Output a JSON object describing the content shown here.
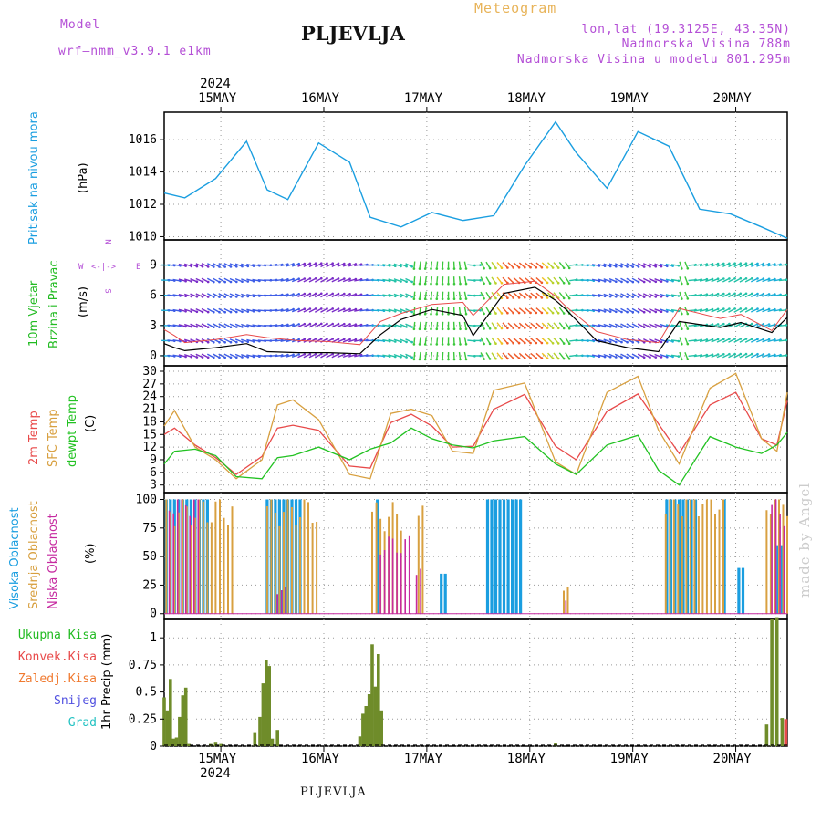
{
  "header": {
    "model_label": "Model",
    "model_name": "wrf—nmm_v3.9.1  e1km",
    "station": "PLJEVLJA",
    "product": "Meteogram",
    "coords": "lon,lat (19.3125E, 43.35N)",
    "elevation": "Nadmorska Visina 788m",
    "model_elevation": "Nadmorska Visina u modelu 801.295m"
  },
  "footer": {
    "station": "PLJEVLJA"
  },
  "watermark": "made by Angel",
  "colors": {
    "model": "#b44fd6",
    "product": "#e8b45a",
    "coords": "#b44fd6",
    "pressure": "#1a9ee0",
    "wind_green": "#22bb22",
    "t2m": "#e84a4a",
    "sfc": "#d8a040",
    "dew": "#22c222",
    "high_cloud": "#1a9ee0",
    "mid_cloud": "#d8a040",
    "low_cloud": "#c62aa0",
    "total_precip": "#3bb53b",
    "conv_precip": "#e84a4a",
    "frz_precip": "#f07a30",
    "snow": "#5050e0",
    "grad": "#22c2c2"
  },
  "top_dates": {
    "year": "2024",
    "days": [
      "15MAY",
      "16MAY",
      "17MAY",
      "18MAY",
      "19MAY",
      "20MAY"
    ]
  },
  "bottom_dates": {
    "year": "2024",
    "days": [
      "15MAY",
      "16MAY",
      "17MAY",
      "18MAY",
      "19MAY",
      "20MAY"
    ]
  },
  "labels": {
    "pressure": "Pritisak na nivou mora",
    "pressure_unit": "(hPa)",
    "wind1": "10m Vjetar",
    "wind2": "Brzina i Pravac",
    "wind_unit": "(m/s)",
    "compass_n": "N",
    "compass_e": "E",
    "compass_w": "W",
    "compass_s": "S",
    "t2m": "2m Temp",
    "sfc": "SFC Temp",
    "dew": "dewpt Temp",
    "temp_unit": "(C)",
    "cl_high": "Visoka Oblacnost",
    "cl_mid": "Srednja Oblacnost",
    "cl_low": "Niska Oblacnost",
    "cl_unit": "(%)",
    "pr_total": "Ukupna Kisa",
    "pr_conv": "Konvek.Kisa",
    "pr_frz": "Zaledj.Kisa",
    "pr_snow": "Snijeg",
    "pr_grad": "Grad",
    "pr_unit": "1hr Precip (mm)"
  },
  "chart_data": [
    {
      "type": "line",
      "name": "pressure",
      "ylabel": "Pritisak na nivou mora (hPa)",
      "yticks": [
        1010,
        1012,
        1014,
        1016
      ],
      "ylim": [
        1009.8,
        1017.7
      ],
      "grid": true,
      "x_days": [
        0,
        0.2,
        0.5,
        0.8,
        1.0,
        1.2,
        1.5,
        1.8,
        2.0,
        2.3,
        2.6,
        2.9,
        3.2,
        3.5,
        3.8,
        4.0,
        4.3,
        4.6,
        4.9,
        5.2,
        5.5,
        5.8,
        6.05
      ],
      "series": [
        {
          "values": [
            1012.7,
            1012.4,
            1013.6,
            1015.9,
            1012.9,
            1012.3,
            1015.8,
            1014.6,
            1011.2,
            1010.6,
            1011.5,
            1011.0,
            1011.3,
            1014.4,
            1017.1,
            1015.2,
            1013.0,
            1016.5,
            1015.6,
            1011.7,
            1011.4,
            1010.6,
            1009.9
          ]
        }
      ]
    },
    {
      "type": "line",
      "name": "wind",
      "ylabel": "10m Vjetar Brzina i Pravac (m/s)",
      "yticks": [
        0,
        3,
        6,
        9
      ],
      "ylim": [
        -1,
        11.5
      ],
      "grid": true,
      "x_days": [
        0,
        0.1,
        0.2,
        0.5,
        0.8,
        1.0,
        1.3,
        1.6,
        1.9,
        2.1,
        2.3,
        2.6,
        2.9,
        3.0,
        3.3,
        3.6,
        3.8,
        3.9,
        4.2,
        4.5,
        4.8,
        5.0,
        5.4,
        5.6,
        5.9,
        6.05
      ],
      "series": [
        {
          "values": [
            1.2,
            0.8,
            0.5,
            0.8,
            1.2,
            0.4,
            0.3,
            0.3,
            0.2,
            2.1,
            3.6,
            4.6,
            4.0,
            2.0,
            6.2,
            6.8,
            5.5,
            4.6,
            1.5,
            0.8,
            0.4,
            3.4,
            2.8,
            3.3,
            2.3,
            3.8
          ]
        },
        {
          "values": [
            2.6,
            2.0,
            1.3,
            1.6,
            2.1,
            1.8,
            1.5,
            1.4,
            1.1,
            3.4,
            4.2,
            5.1,
            5.3,
            4.0,
            7.1,
            7.4,
            5.9,
            4.9,
            2.4,
            1.6,
            1.3,
            4.7,
            3.7,
            4.1,
            2.5,
            4.6
          ]
        }
      ]
    },
    {
      "type": "line",
      "name": "temperature",
      "ylabel": "2m Temp / SFC Temp / dewpt Temp (C)",
      "yticks": [
        3,
        6,
        9,
        12,
        15,
        18,
        21,
        24,
        27,
        30
      ],
      "ylim": [
        1.2,
        31.3
      ],
      "grid": true,
      "x_days": [
        0,
        0.1,
        0.3,
        0.5,
        0.7,
        0.95,
        1.1,
        1.25,
        1.5,
        1.8,
        2.0,
        2.2,
        2.4,
        2.6,
        2.8,
        3.0,
        3.2,
        3.5,
        3.8,
        4.0,
        4.3,
        4.6,
        4.8,
        5.0,
        5.3,
        5.55,
        5.8,
        5.95,
        6.05
      ],
      "series": [
        {
          "name": "2m Temp",
          "values": [
            15.0,
            16.5,
            12.5,
            9.5,
            5.5,
            9.8,
            16.5,
            17.2,
            16.0,
            7.5,
            7.0,
            17.8,
            19.8,
            17.0,
            12.0,
            12.2,
            21.0,
            24.5,
            12.2,
            9.0,
            20.5,
            24.6,
            17.5,
            10.5,
            22.0,
            25.0,
            14.0,
            12.5,
            23.0
          ]
        },
        {
          "name": "SFC Temp",
          "values": [
            17.0,
            20.7,
            12.0,
            9.0,
            4.5,
            9.0,
            22.0,
            23.2,
            18.5,
            5.5,
            4.5,
            20.0,
            21.0,
            19.5,
            11.0,
            10.5,
            25.5,
            27.2,
            8.5,
            5.5,
            25.0,
            28.8,
            16.0,
            8.0,
            26.0,
            29.5,
            14.0,
            11.0,
            25.0
          ]
        },
        {
          "name": "dewpt Temp",
          "values": [
            8.0,
            11.0,
            11.5,
            10.0,
            5.0,
            4.5,
            9.5,
            10.0,
            12.0,
            9.0,
            11.5,
            13.0,
            16.5,
            14.0,
            12.5,
            11.8,
            13.5,
            14.5,
            8.0,
            5.5,
            12.5,
            14.8,
            6.5,
            3.0,
            14.5,
            12.0,
            10.5,
            12.5,
            15.5
          ]
        }
      ]
    },
    {
      "type": "bar",
      "name": "cloud_cover",
      "ylabel": "Visoka / Srednja / Niska Oblacnost (%)",
      "yticks": [
        0,
        25,
        50,
        75,
        100
      ],
      "ylim": [
        -5,
        106
      ],
      "grid": true,
      "series": [
        {
          "name": "Visoka Oblacnost",
          "segments": [
            [
              0.02,
              0.45,
              100
            ],
            [
              1.0,
              1.35,
              100
            ],
            [
              2.07,
              2.1,
              100
            ],
            [
              2.69,
              2.74,
              35
            ],
            [
              3.14,
              3.5,
              100
            ],
            [
              4.88,
              5.18,
              100
            ],
            [
              5.44,
              5.47,
              100
            ],
            [
              5.58,
              5.62,
              40
            ],
            [
              5.96,
              6.0,
              60
            ]
          ]
        },
        {
          "name": "Srednja Oblacnost",
          "segments": [
            [
              0.02,
              0.7,
              90
            ],
            [
              1.0,
              1.52,
              90
            ],
            [
              2.02,
              2.33,
              85
            ],
            [
              2.47,
              2.52,
              100
            ],
            [
              3.88,
              3.92,
              20
            ],
            [
              4.87,
              5.45,
              100
            ],
            [
              5.85,
              6.05,
              100
            ]
          ]
        },
        {
          "name": "Niska Oblacnost",
          "segments": [
            [
              0.05,
              0.35,
              100
            ],
            [
              1.1,
              1.2,
              20
            ],
            [
              2.1,
              2.4,
              60
            ],
            [
              2.45,
              2.5,
              40
            ],
            [
              3.9,
              3.92,
              10
            ],
            [
              5.9,
              6.05,
              90
            ]
          ]
        }
      ]
    },
    {
      "type": "bar",
      "name": "precipitation",
      "ylabel": "1hr Precip (mm)",
      "yticks": [
        0,
        0.25,
        0.5,
        0.75,
        1
      ],
      "ylim": [
        0,
        1.17
      ],
      "grid": true,
      "x_days": [
        0.0,
        0.03,
        0.06,
        0.09,
        0.12,
        0.15,
        0.18,
        0.21,
        0.24,
        0.27,
        0.3,
        0.45,
        0.5,
        0.55,
        0.88,
        0.93,
        0.96,
        0.99,
        1.02,
        1.05,
        1.1,
        1.15,
        1.9,
        1.93,
        1.96,
        1.99,
        2.02,
        2.05,
        2.08,
        2.11,
        2.15,
        3.8,
        5.85,
        5.9,
        5.95,
        6.0
      ],
      "series": [
        {
          "name": "Ukupna Kisa",
          "values": [
            0.45,
            0.33,
            0.62,
            0.07,
            0.08,
            0.27,
            0.47,
            0.54,
            0.02,
            0.0,
            0.0,
            0.02,
            0.04,
            0.02,
            0.13,
            0.27,
            0.58,
            0.8,
            0.74,
            0.07,
            0.15,
            0.0,
            0.09,
            0.3,
            0.37,
            0.48,
            0.94,
            0.55,
            0.85,
            0.33,
            0.0,
            0.03,
            0.2,
            1.17,
            1.19,
            0.26
          ]
        },
        {
          "name": "Konvek.Kisa",
          "values": [
            0.0,
            0.0,
            0.0,
            0.0,
            0.0,
            0.0,
            0.0,
            0.0,
            0.0,
            0.0,
            0.0,
            0.0,
            0.0,
            0.0,
            0.0,
            0.0,
            0.0,
            0.0,
            0.0,
            0.0,
            0.0,
            0.0,
            0.0,
            0.0,
            0.0,
            0.0,
            0.0,
            0.0,
            0.0,
            0.0,
            0.0,
            0.0,
            0.0,
            0.0,
            0.0,
            0.25
          ]
        },
        {
          "name": "Zaledj.Kisa",
          "values": []
        },
        {
          "name": "Snijeg",
          "values": []
        },
        {
          "name": "Grad",
          "values": []
        }
      ]
    }
  ]
}
